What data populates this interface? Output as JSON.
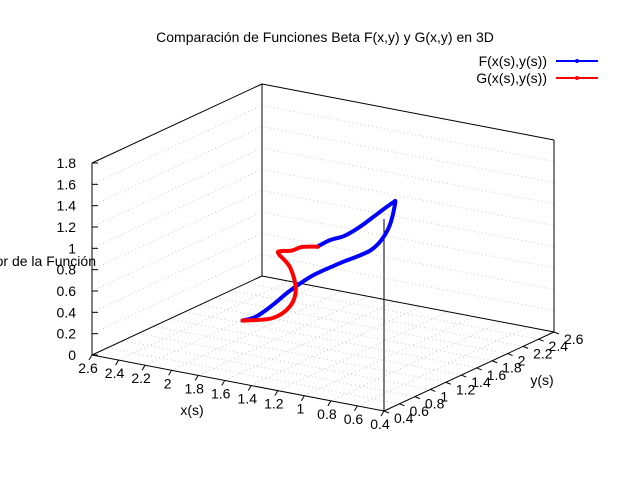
{
  "chart_data": {
    "type": "line",
    "projection": "3d",
    "title": "Comparación de Funciones Beta F(x,y) y G(x,y) en 3D",
    "xlabel": "x(s)",
    "ylabel": "y(s)",
    "zlabel": "Valor de la Función",
    "xlim": [
      0.4,
      2.6
    ],
    "ylim": [
      0.4,
      2.6
    ],
    "zlim": [
      0,
      1.8
    ],
    "x_ticks": [
      "0.4",
      "0.6",
      "0.8",
      "1",
      "1.2",
      "1.4",
      "1.6",
      "1.8",
      "2",
      "2.2",
      "2.4",
      "2.6"
    ],
    "y_ticks": [
      "0.4",
      "0.6",
      "0.8",
      "1",
      "1.2",
      "1.4",
      "1.6",
      "1.8",
      "2",
      "2.2",
      "2.4",
      "2.6"
    ],
    "z_ticks": [
      "0",
      "0.2",
      "0.4",
      "0.6",
      "0.8",
      "1",
      "1.2",
      "1.4",
      "1.6",
      "1.8"
    ],
    "grid": true,
    "legend_position": "top-right",
    "series": [
      {
        "name": "F(x(s),y(s))",
        "color": "#0000ff",
        "points": [
          [
            1.6,
            1.6,
            0.85
          ],
          [
            1.45,
            1.5,
            0.98
          ],
          [
            1.25,
            1.35,
            1.12
          ],
          [
            1.05,
            1.2,
            1.3
          ],
          [
            0.8,
            1.0,
            1.55
          ],
          [
            0.6,
            0.85,
            1.75
          ],
          [
            0.52,
            0.75,
            1.8
          ],
          [
            0.5,
            0.62,
            1.6
          ],
          [
            0.58,
            0.55,
            1.42
          ],
          [
            0.8,
            0.55,
            1.25
          ],
          [
            1.05,
            0.6,
            1.05
          ],
          [
            1.3,
            0.72,
            0.8
          ],
          [
            1.5,
            0.85,
            0.58
          ],
          [
            1.7,
            0.98,
            0.38
          ],
          [
            1.85,
            1.06,
            0.28
          ]
        ]
      },
      {
        "name": "G(x(s),y(s))",
        "color": "#ff0000",
        "points": [
          [
            1.6,
            1.6,
            0.85
          ],
          [
            1.8,
            1.75,
            0.75
          ],
          [
            2.0,
            1.95,
            0.6
          ],
          [
            2.2,
            2.15,
            0.48
          ],
          [
            2.3,
            2.3,
            0.38
          ],
          [
            2.3,
            2.45,
            0.2
          ],
          [
            2.2,
            2.35,
            0.05
          ],
          [
            2.1,
            2.1,
            0.0
          ],
          [
            2.0,
            1.7,
            0.05
          ],
          [
            1.85,
            1.06,
            0.28
          ]
        ]
      }
    ]
  }
}
